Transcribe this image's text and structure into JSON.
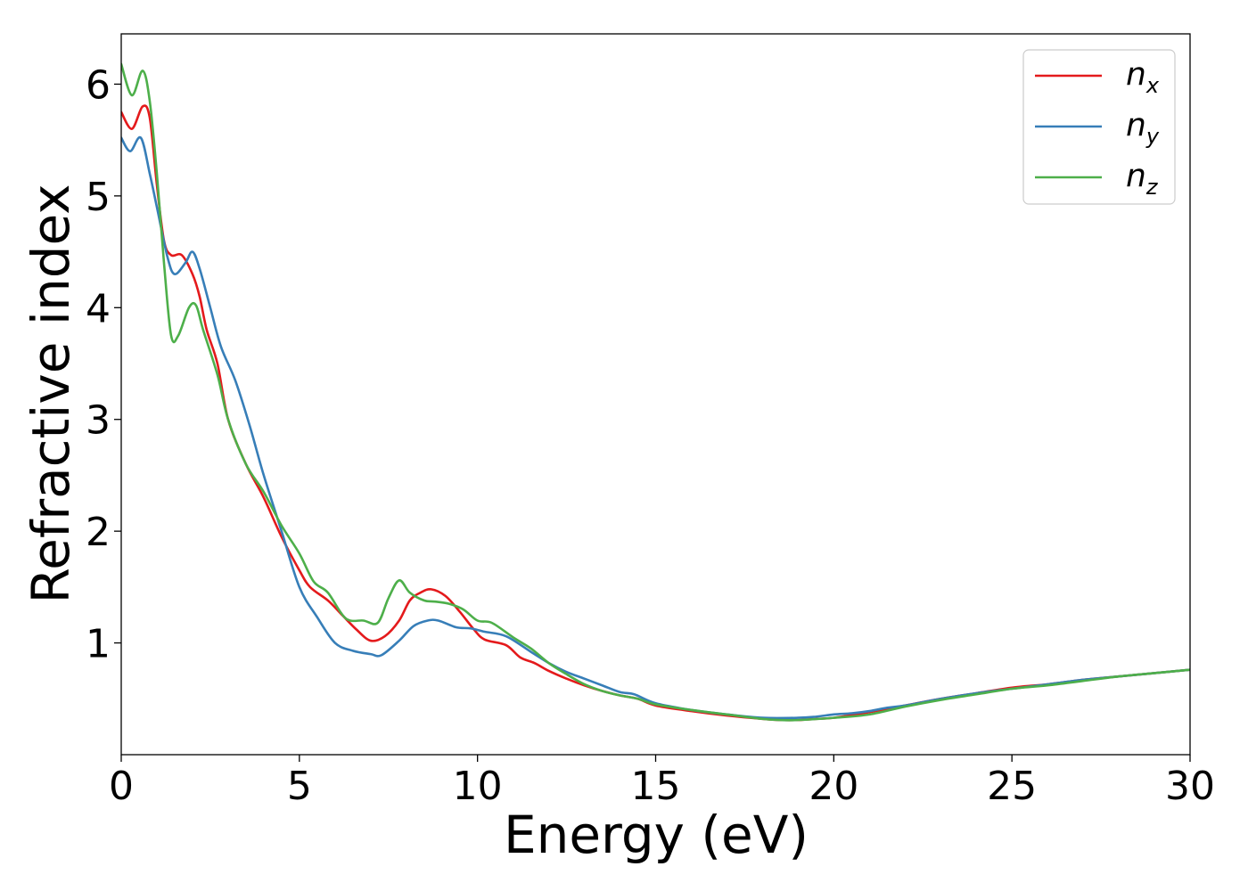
{
  "chart_data": {
    "type": "line",
    "title": "",
    "xlabel": "Energy (eV)",
    "ylabel": "Refractive index",
    "xlim": [
      0,
      30
    ],
    "ylim": [
      0.0,
      6.45
    ],
    "xticks": [
      0,
      5,
      10,
      15,
      20,
      25,
      30
    ],
    "yticks": [
      1,
      2,
      3,
      4,
      5,
      6
    ],
    "grid": false,
    "legend_position": "top-right",
    "series": [
      {
        "name": "n_x",
        "label_base": "n",
        "label_sub": "x",
        "color": "#e41a1c",
        "points": [
          [
            0,
            5.75
          ],
          [
            0.3,
            5.6
          ],
          [
            0.6,
            5.8
          ],
          [
            0.8,
            5.7
          ],
          [
            1.0,
            5.1
          ],
          [
            1.2,
            4.6
          ],
          [
            1.4,
            4.47
          ],
          [
            1.7,
            4.47
          ],
          [
            2.0,
            4.3
          ],
          [
            2.2,
            4.1
          ],
          [
            2.4,
            3.8
          ],
          [
            2.7,
            3.5
          ],
          [
            3.0,
            3.0
          ],
          [
            3.5,
            2.6
          ],
          [
            4.0,
            2.3
          ],
          [
            4.5,
            1.95
          ],
          [
            5.0,
            1.65
          ],
          [
            5.3,
            1.5
          ],
          [
            5.8,
            1.38
          ],
          [
            6.2,
            1.25
          ],
          [
            6.6,
            1.12
          ],
          [
            7.0,
            1.02
          ],
          [
            7.4,
            1.06
          ],
          [
            7.8,
            1.2
          ],
          [
            8.1,
            1.38
          ],
          [
            8.4,
            1.45
          ],
          [
            8.7,
            1.48
          ],
          [
            9.1,
            1.42
          ],
          [
            9.5,
            1.28
          ],
          [
            9.9,
            1.12
          ],
          [
            10.2,
            1.03
          ],
          [
            10.8,
            0.98
          ],
          [
            11.2,
            0.87
          ],
          [
            11.6,
            0.82
          ],
          [
            12.0,
            0.75
          ],
          [
            12.5,
            0.68
          ],
          [
            13.0,
            0.62
          ],
          [
            13.5,
            0.57
          ],
          [
            14.0,
            0.53
          ],
          [
            14.5,
            0.5
          ],
          [
            15.0,
            0.44
          ],
          [
            16.0,
            0.39
          ],
          [
            17.0,
            0.35
          ],
          [
            18.0,
            0.32
          ],
          [
            18.5,
            0.31
          ],
          [
            19.0,
            0.31
          ],
          [
            19.5,
            0.32
          ],
          [
            20.0,
            0.33
          ],
          [
            21.0,
            0.38
          ],
          [
            22.0,
            0.44
          ],
          [
            23.0,
            0.5
          ],
          [
            24.0,
            0.55
          ],
          [
            25.0,
            0.6
          ],
          [
            26.0,
            0.63
          ],
          [
            27.0,
            0.67
          ],
          [
            28.0,
            0.7
          ],
          [
            29.0,
            0.73
          ],
          [
            30.0,
            0.76
          ]
        ]
      },
      {
        "name": "n_y",
        "label_base": "n",
        "label_sub": "y",
        "color": "#377eb8",
        "points": [
          [
            0,
            5.52
          ],
          [
            0.25,
            5.4
          ],
          [
            0.55,
            5.52
          ],
          [
            0.8,
            5.2
          ],
          [
            1.0,
            4.9
          ],
          [
            1.3,
            4.45
          ],
          [
            1.5,
            4.3
          ],
          [
            1.8,
            4.4
          ],
          [
            2.0,
            4.5
          ],
          [
            2.2,
            4.35
          ],
          [
            2.5,
            4.0
          ],
          [
            2.8,
            3.65
          ],
          [
            3.2,
            3.35
          ],
          [
            3.6,
            2.95
          ],
          [
            4.0,
            2.5
          ],
          [
            4.5,
            2.0
          ],
          [
            5.0,
            1.5
          ],
          [
            5.5,
            1.23
          ],
          [
            6.0,
            1.0
          ],
          [
            6.5,
            0.93
          ],
          [
            7.0,
            0.9
          ],
          [
            7.3,
            0.89
          ],
          [
            7.8,
            1.02
          ],
          [
            8.2,
            1.15
          ],
          [
            8.6,
            1.2
          ],
          [
            8.9,
            1.2
          ],
          [
            9.4,
            1.14
          ],
          [
            9.8,
            1.13
          ],
          [
            10.2,
            1.1
          ],
          [
            10.8,
            1.06
          ],
          [
            11.5,
            0.92
          ],
          [
            12.0,
            0.82
          ],
          [
            12.5,
            0.74
          ],
          [
            13.0,
            0.68
          ],
          [
            13.5,
            0.62
          ],
          [
            14.0,
            0.56
          ],
          [
            14.4,
            0.54
          ],
          [
            15.0,
            0.46
          ],
          [
            16.0,
            0.4
          ],
          [
            17.0,
            0.36
          ],
          [
            18.0,
            0.33
          ],
          [
            19.0,
            0.33
          ],
          [
            19.5,
            0.34
          ],
          [
            20.0,
            0.36
          ],
          [
            20.5,
            0.37
          ],
          [
            21.0,
            0.39
          ],
          [
            21.5,
            0.42
          ],
          [
            22.0,
            0.44
          ],
          [
            23.0,
            0.5
          ],
          [
            24.0,
            0.55
          ],
          [
            25.0,
            0.59
          ],
          [
            26.0,
            0.63
          ],
          [
            27.0,
            0.67
          ],
          [
            28.0,
            0.7
          ],
          [
            29.0,
            0.73
          ],
          [
            30.0,
            0.76
          ]
        ]
      },
      {
        "name": "n_z",
        "label_base": "n",
        "label_sub": "z",
        "color": "#4daf4a",
        "points": [
          [
            0,
            6.18
          ],
          [
            0.3,
            5.9
          ],
          [
            0.6,
            6.12
          ],
          [
            0.8,
            5.85
          ],
          [
            1.0,
            5.2
          ],
          [
            1.2,
            4.4
          ],
          [
            1.4,
            3.75
          ],
          [
            1.6,
            3.75
          ],
          [
            1.9,
            4.0
          ],
          [
            2.1,
            4.02
          ],
          [
            2.3,
            3.8
          ],
          [
            2.7,
            3.4
          ],
          [
            3.0,
            3.0
          ],
          [
            3.5,
            2.6
          ],
          [
            4.0,
            2.35
          ],
          [
            4.5,
            2.05
          ],
          [
            5.0,
            1.8
          ],
          [
            5.4,
            1.55
          ],
          [
            5.8,
            1.45
          ],
          [
            6.3,
            1.22
          ],
          [
            6.8,
            1.2
          ],
          [
            7.2,
            1.18
          ],
          [
            7.5,
            1.4
          ],
          [
            7.8,
            1.56
          ],
          [
            8.1,
            1.45
          ],
          [
            8.5,
            1.38
          ],
          [
            8.8,
            1.37
          ],
          [
            9.2,
            1.35
          ],
          [
            9.6,
            1.3
          ],
          [
            10.0,
            1.2
          ],
          [
            10.4,
            1.18
          ],
          [
            11.0,
            1.05
          ],
          [
            11.5,
            0.95
          ],
          [
            12.0,
            0.82
          ],
          [
            12.5,
            0.72
          ],
          [
            13.0,
            0.63
          ],
          [
            13.5,
            0.57
          ],
          [
            14.0,
            0.53
          ],
          [
            14.5,
            0.5
          ],
          [
            15.0,
            0.45
          ],
          [
            16.0,
            0.4
          ],
          [
            17.0,
            0.36
          ],
          [
            18.0,
            0.32
          ],
          [
            18.5,
            0.31
          ],
          [
            19.0,
            0.31
          ],
          [
            20.0,
            0.33
          ],
          [
            21.0,
            0.36
          ],
          [
            22.0,
            0.43
          ],
          [
            23.0,
            0.49
          ],
          [
            24.0,
            0.54
          ],
          [
            25.0,
            0.59
          ],
          [
            26.0,
            0.62
          ],
          [
            27.0,
            0.66
          ],
          [
            28.0,
            0.7
          ],
          [
            29.0,
            0.73
          ],
          [
            30.0,
            0.76
          ]
        ]
      }
    ]
  }
}
